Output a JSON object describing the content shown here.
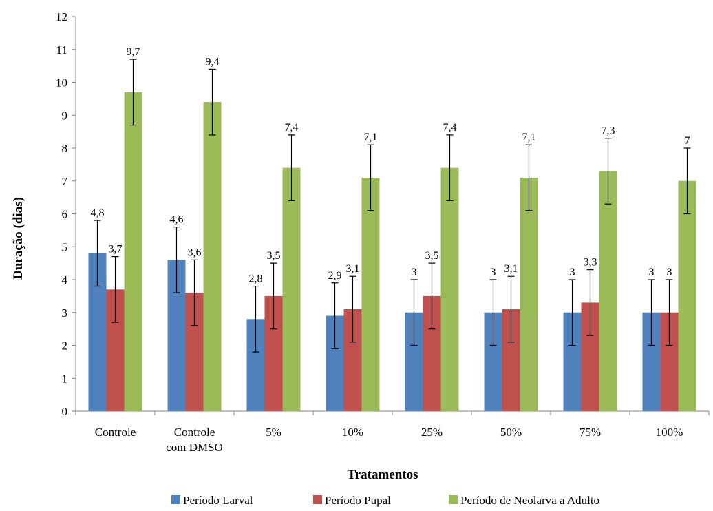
{
  "chart_data": {
    "type": "bar",
    "xlabel": "Tratamentos",
    "ylabel": "Duração (dias)",
    "ylim": [
      0,
      12
    ],
    "yticks": [
      0,
      1,
      2,
      3,
      4,
      5,
      6,
      7,
      8,
      9,
      10,
      11,
      12
    ],
    "grid": false,
    "legend_position": "bottom",
    "categories": [
      [
        "Controle"
      ],
      [
        "Controle",
        "com DMSO"
      ],
      [
        "5%"
      ],
      [
        "10%"
      ],
      [
        "25%"
      ],
      [
        "50%"
      ],
      [
        "75%"
      ],
      [
        "100%"
      ]
    ],
    "series": [
      {
        "name": "Período Larval",
        "color": "#4f81bd",
        "values": [
          4.8,
          4.6,
          2.8,
          2.9,
          3,
          3,
          3,
          3
        ],
        "error": [
          1,
          1,
          1,
          1,
          1,
          1,
          1,
          1
        ],
        "labels": [
          "4,8",
          "4,6",
          "2,8",
          "2,9",
          "3",
          "3",
          "3",
          "3"
        ]
      },
      {
        "name": "Período Pupal",
        "color": "#c0504d",
        "values": [
          3.7,
          3.6,
          3.5,
          3.1,
          3.5,
          3.1,
          3.3,
          3
        ],
        "error": [
          1,
          1,
          1,
          1,
          1,
          1,
          1,
          1
        ],
        "labels": [
          "3,7",
          "3,6",
          "3,5",
          "3,1",
          "3,5",
          "3,1",
          "3,3",
          "3"
        ]
      },
      {
        "name": "Período de Neolarva a Adulto",
        "color": "#9bbb59",
        "values": [
          9.7,
          9.4,
          7.4,
          7.1,
          7.4,
          7.1,
          7.3,
          7
        ],
        "error": [
          1,
          1,
          1,
          1,
          1,
          1,
          1,
          1
        ],
        "labels": [
          "9,7",
          "9,4",
          "7,4",
          "7,1",
          "7,4",
          "7,1",
          "7,3",
          "7"
        ]
      }
    ]
  }
}
